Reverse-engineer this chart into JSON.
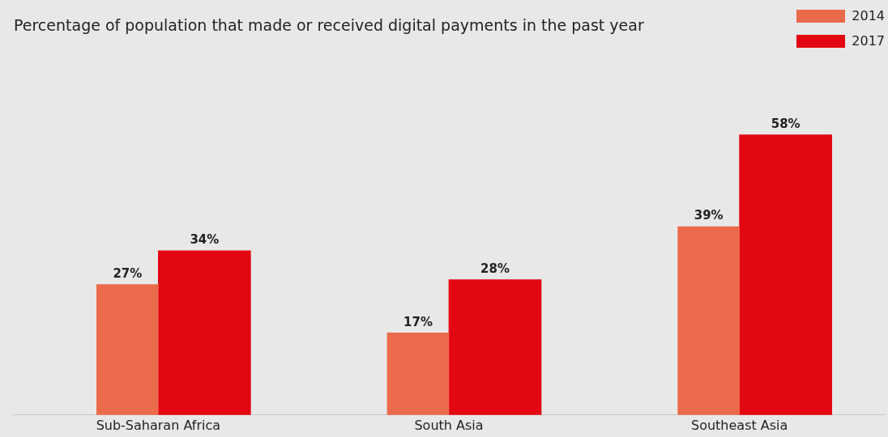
{
  "chart_data": {
    "type": "bar",
    "title": "Percentage of population that made or received digital payments in the past year",
    "categories": [
      "Sub-Saharan Africa",
      "South Asia",
      "Southeast Asia"
    ],
    "series": [
      {
        "name": "2014",
        "color": "#ec6a4c",
        "values": [
          27,
          17,
          39
        ],
        "value_labels": [
          "27%",
          "17%",
          "39%"
        ]
      },
      {
        "name": "2017",
        "color": "#e30613",
        "values": [
          34,
          28,
          58
        ],
        "value_labels": [
          "34%",
          "28%",
          "58%"
        ]
      }
    ],
    "legend": "top right",
    "grid": false
  }
}
